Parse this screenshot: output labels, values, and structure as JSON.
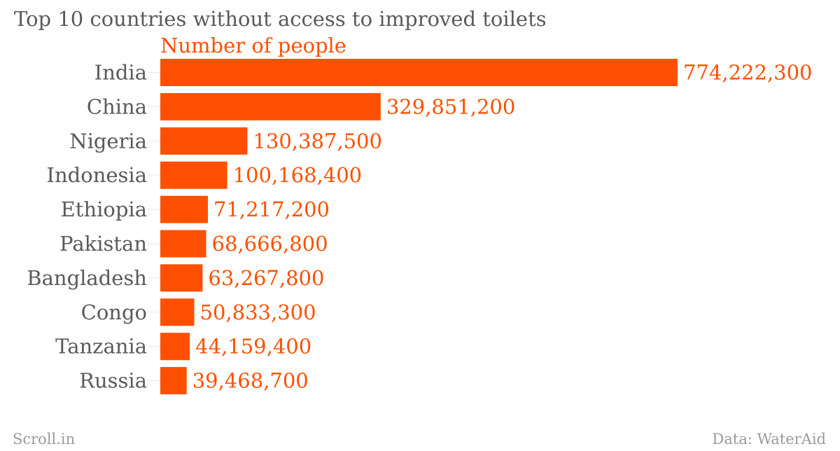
{
  "chart_data": {
    "type": "bar",
    "orientation": "horizontal",
    "title": "Top 10 countries without access to improved toilets",
    "categories": [
      "India",
      "China",
      "Nigeria",
      "Indonesia",
      "Ethiopia",
      "Pakistan",
      "Bangladesh",
      "Congo",
      "Tanzania",
      "Russia"
    ],
    "series": [
      {
        "name": "Number of people",
        "values": [
          774222300,
          329851200,
          130387500,
          100168400,
          71217200,
          68666800,
          63267800,
          50833300,
          44159400,
          39468700
        ],
        "labels": [
          "774,222,300",
          "329,851,200",
          "130,387,500",
          "100,168,400",
          "71,217,200",
          "68,666,800",
          "63,267,800",
          "50,833,300",
          "44,159,400",
          "39,468,700"
        ]
      }
    ],
    "xlim": [
      0,
      774222300
    ],
    "grid": false,
    "legend": "top-left",
    "bar_color": "#fe5000"
  },
  "footer": {
    "source_left": "Scroll.in",
    "source_right": "Data: WaterAid"
  },
  "colors": {
    "accent": "#fe5000",
    "title": "#5a5a5a",
    "footer": "#9a9a9a"
  }
}
